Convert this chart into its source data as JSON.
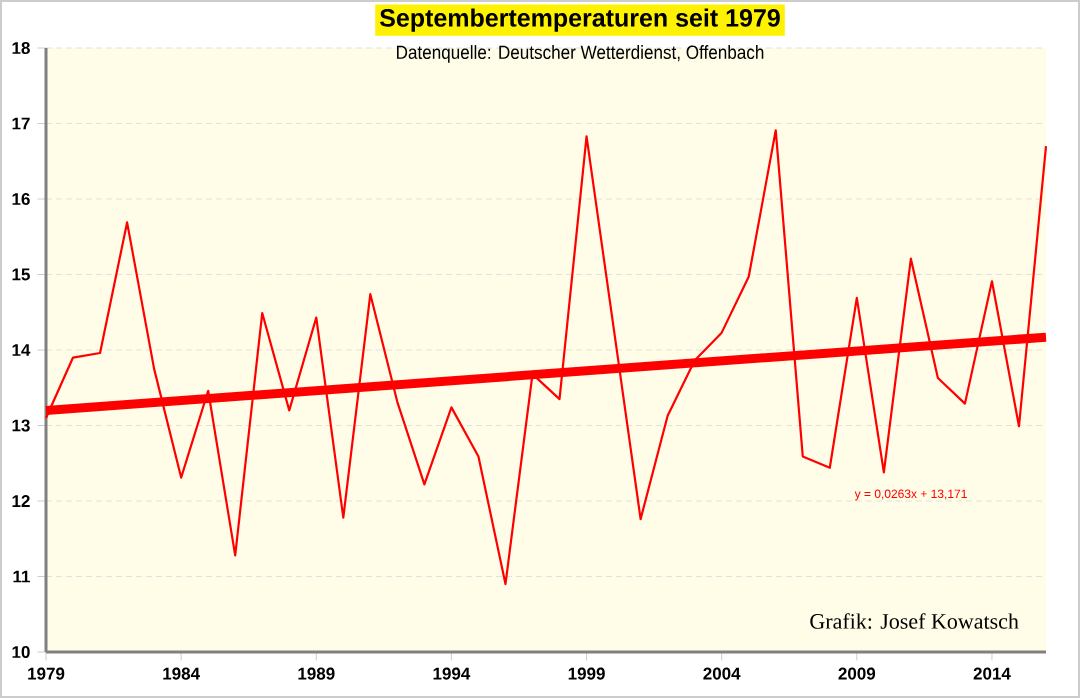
{
  "chart_data": {
    "type": "line",
    "title": "Septembertemperaturen seit 1979",
    "subtitle": "Datenquelle: Deutscher Wetterdienst, Offenbach",
    "series": [
      {
        "color": "#ff0000",
        "x": [
          1979,
          1980,
          1981,
          1982,
          1983,
          1984,
          1985,
          1986,
          1987,
          1988,
          1989,
          1990,
          1991,
          1992,
          1993,
          1994,
          1995,
          1996,
          1997,
          1998,
          1999,
          2000,
          2001,
          2002,
          2003,
          2004,
          2005,
          2006,
          2007,
          2008,
          2009,
          2010,
          2011,
          2012,
          2013,
          2014,
          2015,
          2016
        ],
        "values": [
          13.1,
          13.9,
          13.96,
          15.69,
          13.75,
          12.31,
          13.46,
          11.28,
          14.49,
          13.2,
          14.43,
          11.78,
          14.74,
          13.31,
          12.22,
          13.24,
          12.59,
          10.9,
          13.68,
          13.35,
          16.83,
          14.3,
          11.76,
          13.13,
          13.86,
          14.23,
          14.97,
          16.91,
          12.59,
          12.44,
          14.69,
          12.38,
          15.21,
          13.63,
          13.29,
          14.91,
          12.99,
          16.7
        ]
      },
      {
        "color": "#ff0000",
        "x": [
          1979,
          2016
        ],
        "values": [
          13.2,
          14.17
        ]
      }
    ],
    "annotations": [
      "y = 0,0263x + 13,171",
      "Grafik: Josef Kowatsch"
    ],
    "xlim": [
      1979,
      2016
    ],
    "xticks": [
      1979,
      1984,
      1989,
      1994,
      1999,
      2004,
      2009,
      2014
    ],
    "ylim": [
      10,
      18
    ],
    "yticks": [
      10,
      11,
      12,
      13,
      14,
      15,
      16,
      17,
      18
    ],
    "grid": "y",
    "marker": "none",
    "line_style": "solid"
  }
}
